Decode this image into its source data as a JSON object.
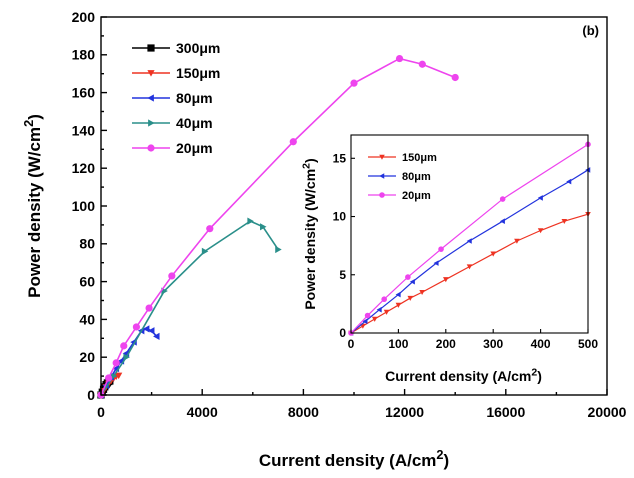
{
  "chart_data": [
    {
      "type": "line",
      "panel_label": "(b)",
      "xlabel": "Current density (A/cm",
      "xlabel_sup": "2",
      "xlabel_end": ")",
      "ylabel": "Power density (W/cm",
      "ylabel_sup": "2",
      "ylabel_end": ")",
      "xlim": [
        0,
        20000
      ],
      "ylim": [
        0,
        200
      ],
      "xticks": [
        0,
        4000,
        8000,
        12000,
        16000,
        20000
      ],
      "yticks": [
        0,
        20,
        40,
        60,
        80,
        100,
        120,
        140,
        160,
        180,
        200
      ],
      "grid": false,
      "legend_position": "top-left",
      "series": [
        {
          "name": "300μm",
          "color": "#000000",
          "marker": "square",
          "x": [
            0,
            50,
            100,
            150,
            200,
            250,
            300,
            350
          ],
          "y": [
            0,
            1.5,
            3,
            4.3,
            5.5,
            6.4,
            7.1,
            7.4
          ]
        },
        {
          "name": "150μm",
          "color": "#ee3322",
          "marker": "triangle-down",
          "x": [
            0,
            100,
            200,
            300,
            400,
            500,
            600,
            700
          ],
          "y": [
            0,
            2.2,
            4.2,
            6,
            7.6,
            8.8,
            9.8,
            10.3
          ]
        },
        {
          "name": "80μm",
          "color": "#2233dd",
          "marker": "triangle-left",
          "x": [
            0,
            200,
            400,
            600,
            800,
            1000,
            1300,
            1600,
            1800,
            2000,
            2200
          ],
          "y": [
            0,
            5,
            9.5,
            14,
            18,
            22,
            28,
            34,
            35,
            34,
            31
          ]
        },
        {
          "name": "40μm",
          "color": "#2a8f8a",
          "marker": "triangle-right",
          "x": [
            0,
            500,
            1000,
            2500,
            4100,
            5900,
            6400,
            7000
          ],
          "y": [
            0,
            10,
            20,
            55,
            76,
            92,
            89,
            77
          ]
        },
        {
          "name": "20μm",
          "color": "#ee44ee",
          "marker": "circle",
          "x": [
            0,
            300,
            600,
            900,
            1400,
            1900,
            2800,
            4300,
            7600,
            10000,
            11800,
            12700,
            14000
          ],
          "y": [
            0,
            9,
            17,
            26,
            36,
            46,
            63,
            88,
            134,
            165,
            178,
            175,
            168
          ]
        }
      ]
    },
    {
      "type": "line",
      "inset": true,
      "xlabel": "Current density (A/cm",
      "xlabel_sup": "2",
      "xlabel_end": ")",
      "ylabel": "Power density (W/cm",
      "ylabel_sup": "2",
      "ylabel_end": ")",
      "xlim": [
        0,
        500
      ],
      "ylim": [
        0,
        17
      ],
      "xticks": [
        0,
        100,
        200,
        300,
        400,
        500
      ],
      "yticks": [
        0,
        5,
        10,
        15
      ],
      "grid": false,
      "legend_position": "top-left",
      "series": [
        {
          "name": "150μm",
          "color": "#ee3322",
          "marker": "triangle-down",
          "x": [
            0,
            25,
            50,
            75,
            100,
            125,
            150,
            200,
            250,
            300,
            350,
            400,
            450,
            500
          ],
          "y": [
            0,
            0.6,
            1.2,
            1.8,
            2.4,
            3.0,
            3.5,
            4.6,
            5.7,
            6.8,
            7.9,
            8.8,
            9.6,
            10.2
          ]
        },
        {
          "name": "80μm",
          "color": "#2233dd",
          "marker": "triangle-left",
          "x": [
            0,
            30,
            60,
            100,
            130,
            180,
            250,
            320,
            400,
            460,
            500
          ],
          "y": [
            0,
            1.0,
            2.0,
            3.3,
            4.4,
            6.0,
            7.9,
            9.6,
            11.6,
            13.0,
            14.0
          ]
        },
        {
          "name": "20μm",
          "color": "#ee44ee",
          "marker": "circle",
          "x": [
            0,
            35,
            70,
            120,
            190,
            320,
            500
          ],
          "y": [
            0,
            1.5,
            2.9,
            4.8,
            7.2,
            11.5,
            16.2
          ]
        }
      ]
    }
  ]
}
